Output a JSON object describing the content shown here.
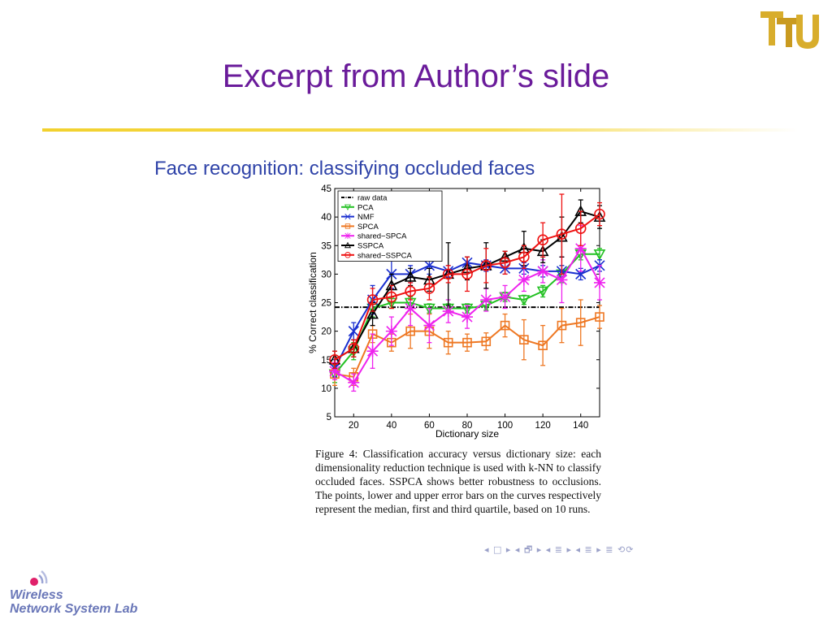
{
  "slide": {
    "title": "Excerpt from Author’s slide",
    "subtitle": "Face recognition: classifying occluded faces",
    "caption": "Figure 4: Classification accuracy versus dictionary size: each dimensionality reduction technique is used with k-NN to classify occluded faces. SSPCA shows better robustness to occlusions. The points, lower and upper error bars on the curves respectively represent the median, first and third quartile, based on 10 runs.",
    "nav_symbols": "◂ □ ▸ ◂ 🗗 ▸ ◂ ≣ ▸ ◂ ≣ ▸   ≣   ⟲⟳",
    "lab_logo": {
      "line1": "Wireless",
      "line2": "Network System Lab",
      "icon": "wifi-signal-icon"
    },
    "uni_logo": {
      "text": "TTU",
      "icon": "university-monogram-logo"
    },
    "colors": {
      "title": "#6a1b9a",
      "subtitle": "#2f43a8",
      "rule": "#f2d12e",
      "lab": "#6a77b8",
      "logo_gold": "#d8ad2c"
    }
  },
  "chart_data": {
    "type": "line",
    "title": "",
    "xlabel": "Dictionary size",
    "ylabel": "% Correct classification",
    "xlim": [
      10,
      150
    ],
    "ylim": [
      5,
      45
    ],
    "xticks": [
      20,
      40,
      60,
      80,
      100,
      120,
      140
    ],
    "yticks": [
      5,
      10,
      15,
      20,
      25,
      30,
      35,
      40,
      45
    ],
    "legend_position": "top-left",
    "x": [
      10,
      20,
      30,
      40,
      50,
      60,
      70,
      80,
      90,
      100,
      110,
      120,
      130,
      140,
      150
    ],
    "series": [
      {
        "name": "raw data",
        "color": "#000000",
        "style": "dashdot",
        "marker": "none",
        "values": [
          24.2,
          24.2,
          24.2,
          24.2,
          24.2,
          24.2,
          24.2,
          24.2,
          24.2,
          24.2,
          24.2,
          24.2,
          24.2,
          24.2,
          24.2
        ]
      },
      {
        "name": "PCA",
        "color": "#22c022",
        "style": "solid",
        "marker": "triangle-down",
        "values": [
          12.5,
          16.5,
          24,
          25,
          25,
          24,
          24,
          24,
          24.5,
          26,
          25.5,
          27,
          30,
          33.5,
          33.5
        ],
        "err": [
          1.5,
          1.5,
          1.5,
          1,
          1,
          0.8,
          0.8,
          0.8,
          0.8,
          0.8,
          0.8,
          1,
          1.5,
          1,
          1
        ]
      },
      {
        "name": "NMF",
        "color": "#1a2fd0",
        "style": "solid",
        "marker": "x",
        "values": [
          13.5,
          20,
          25.5,
          30,
          30,
          31.5,
          30.5,
          32,
          31.5,
          31,
          31,
          30.5,
          30.5,
          30,
          31.5
        ],
        "err": [
          1.5,
          1.5,
          2.5,
          2.5,
          1.5,
          1.5,
          1,
          1,
          1,
          1,
          1,
          1,
          1,
          1,
          1
        ]
      },
      {
        "name": "SPCA",
        "color": "#ee7722",
        "style": "solid",
        "marker": "square",
        "values": [
          12.5,
          12,
          19.5,
          18,
          20,
          20,
          18,
          18,
          18.2,
          21,
          18.5,
          17.5,
          21,
          21.5,
          22.5
        ],
        "err": [
          2,
          1.5,
          1.5,
          1.5,
          3,
          3,
          2,
          1.5,
          1.5,
          2,
          3.5,
          3.5,
          3,
          4,
          2
        ]
      },
      {
        "name": "shared−SPCA",
        "color": "#ee22ee",
        "style": "solid",
        "marker": "star",
        "values": [
          13,
          11,
          16.5,
          20,
          24,
          21,
          23.5,
          22.5,
          25.5,
          26,
          29,
          30.5,
          29,
          34.5,
          28.5
        ],
        "err": [
          1.5,
          1.5,
          3,
          2.5,
          3,
          3,
          2,
          2,
          2,
          2,
          2,
          2,
          4,
          4,
          3
        ]
      },
      {
        "name": "SSPCA",
        "color": "#000000",
        "style": "solid",
        "marker": "triangle-up",
        "values": [
          15,
          17,
          23,
          28,
          29.5,
          29,
          30,
          31,
          31.5,
          33,
          34.5,
          34,
          36.5,
          41,
          40
        ],
        "err": [
          1.5,
          1.5,
          2,
          2,
          1.5,
          2,
          5.5,
          2,
          4,
          1,
          3,
          2,
          3.5,
          2,
          2
        ]
      },
      {
        "name": "shared−SSPCA",
        "color": "#ee1111",
        "style": "solid",
        "marker": "circle",
        "values": [
          15,
          17,
          25.5,
          26,
          27,
          27.5,
          30,
          30,
          31.5,
          32,
          33,
          36,
          37,
          38,
          40.5
        ],
        "err": [
          1.5,
          1.5,
          2,
          2,
          1.5,
          2,
          1.5,
          3,
          3,
          2,
          2,
          3,
          7,
          3,
          2
        ]
      }
    ]
  }
}
